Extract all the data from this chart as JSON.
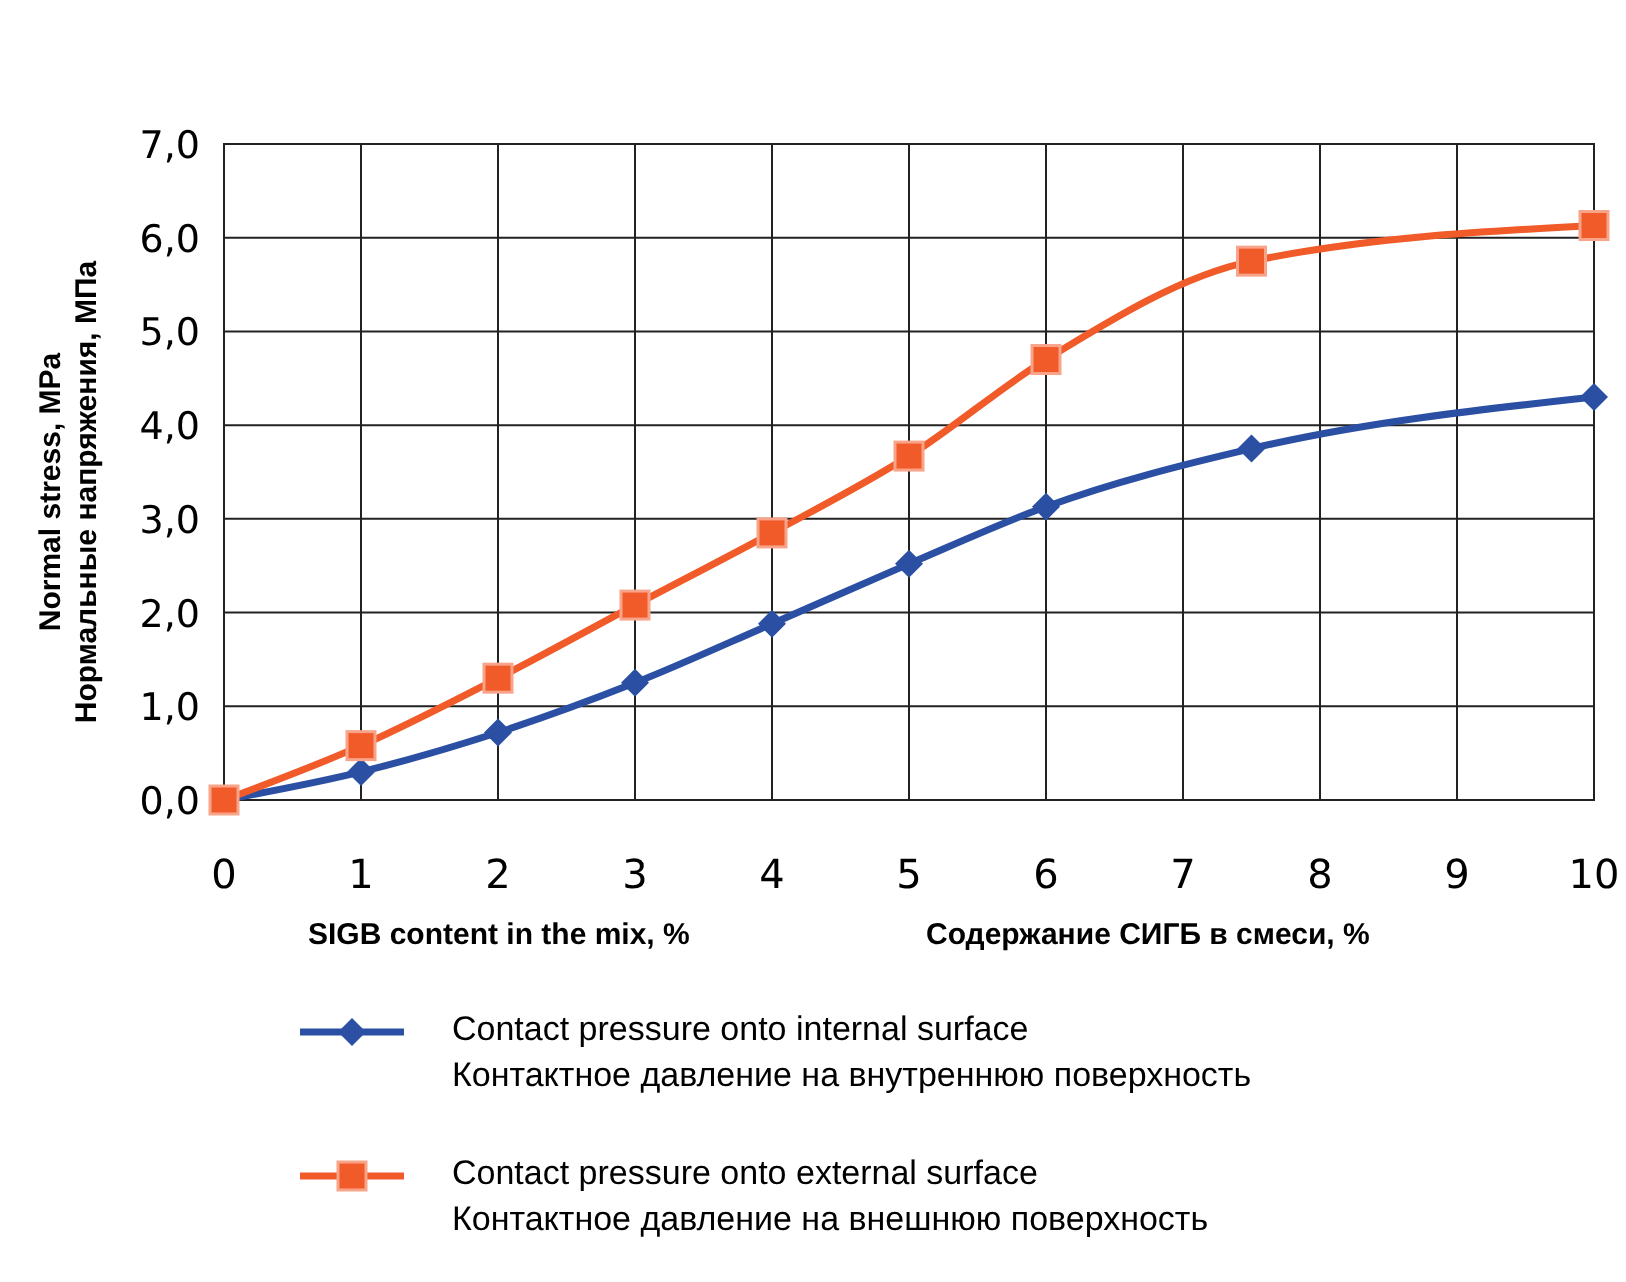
{
  "chart_data": {
    "type": "line",
    "xlabel": "SIGB content in the mix, %",
    "ylabel": "Normal stress, MPa\nНормальные напряжения, МПа",
    "annotations": [
      "Содержание СИГБ в смеси, %"
    ],
    "xlim": [
      0,
      10
    ],
    "xticks": [
      0,
      1,
      2,
      3,
      4,
      5,
      6,
      7,
      8,
      9,
      10
    ],
    "ylim": [
      0,
      7
    ],
    "yticks": [
      {
        "value": 0,
        "label": "0,0"
      },
      {
        "value": 1,
        "label": "1,0"
      },
      {
        "value": 2,
        "label": "2,0"
      },
      {
        "value": 3,
        "label": "3,0"
      },
      {
        "value": 4,
        "label": "4,0"
      },
      {
        "value": 5,
        "label": "5,0"
      },
      {
        "value": 6,
        "label": "6,0"
      },
      {
        "value": 7,
        "label": "7,0"
      }
    ],
    "grid": true,
    "legend": "bottom",
    "line_style": "solid",
    "series": [
      {
        "name": "Contact pressure onto internal surface\nКонтактное давление на внутреннюю поверхность",
        "color": "#2a4fa3",
        "marker": "diamond",
        "x": [
          0,
          1,
          2,
          3,
          4,
          5,
          6,
          7.5,
          10
        ],
        "values": [
          0,
          0.3,
          0.72,
          1.25,
          1.88,
          2.52,
          3.13,
          3.75,
          4.3
        ]
      },
      {
        "name": "Contact pressure onto external surface\nКонтактное давление на внешнюю поверхность",
        "color": "#f15a29",
        "marker": "square",
        "x": [
          0,
          1,
          2,
          3,
          4,
          5,
          6,
          7.5,
          10
        ],
        "values": [
          0,
          0.58,
          1.3,
          2.08,
          2.85,
          3.67,
          4.7,
          5.75,
          6.13
        ]
      }
    ]
  }
}
